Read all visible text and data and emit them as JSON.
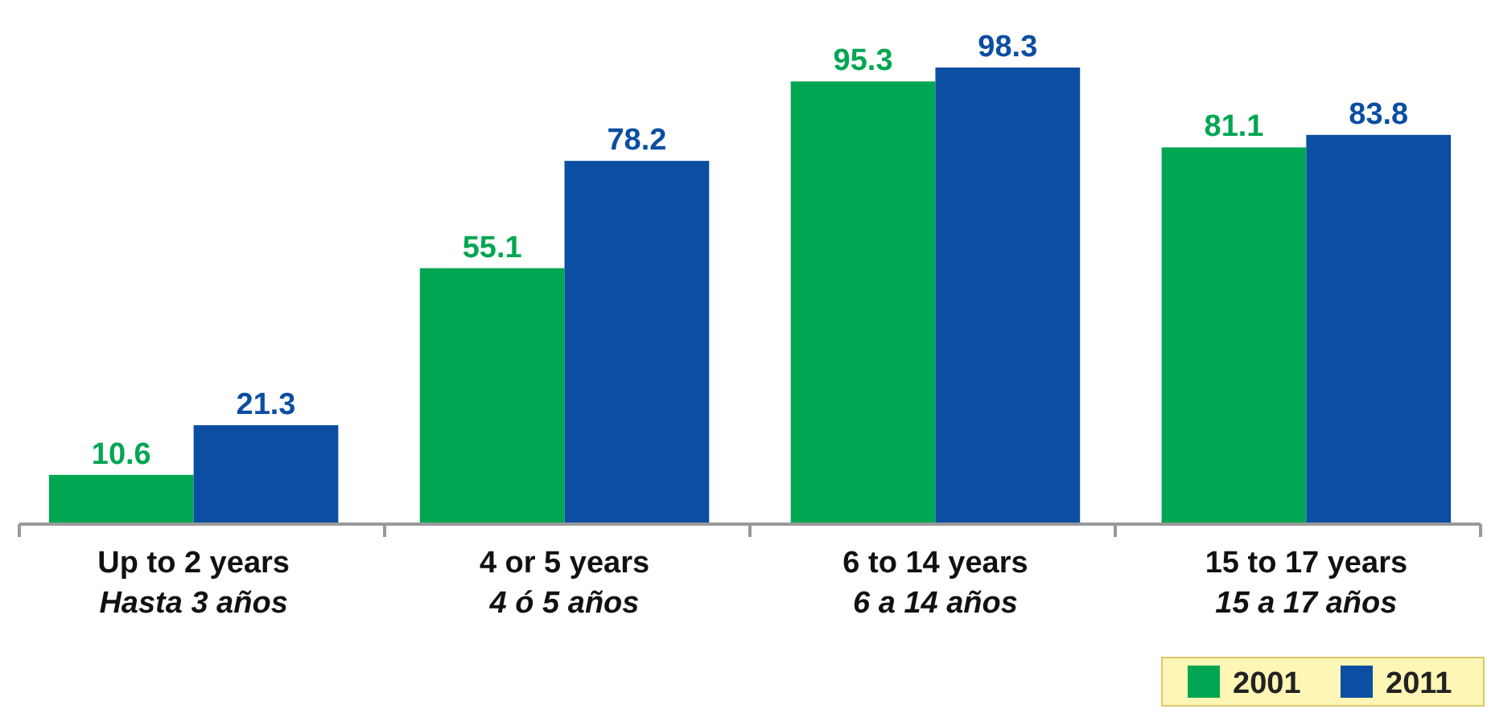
{
  "chart_data": {
    "type": "bar",
    "categories": [
      "Up to 2 years\nHasta 3 años",
      "4 or 5 years\n4 ó 5 años",
      "6 to 14 years\n6 a 14 años",
      "15 to 17 years\n15 a 17 años"
    ],
    "series": [
      {
        "name": "2001",
        "color": "#00a651",
        "values": [
          10.6,
          55.1,
          95.3,
          81.1
        ]
      },
      {
        "name": "2011",
        "color": "#0b4ea2",
        "values": [
          21.3,
          78.2,
          98.3,
          83.8
        ]
      }
    ],
    "data_labels": true,
    "legend": "bottom right"
  }
}
